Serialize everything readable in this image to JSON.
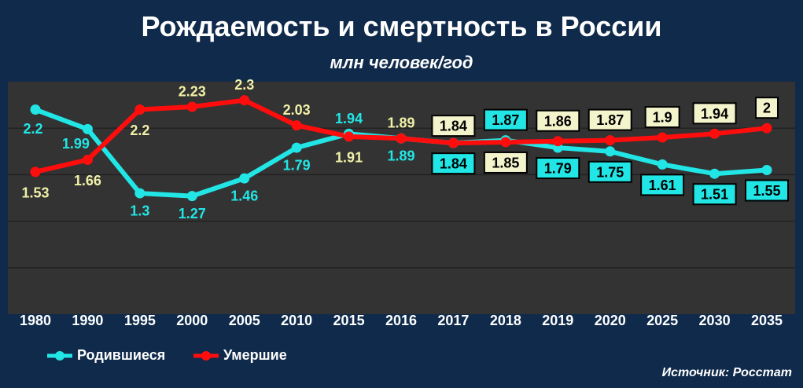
{
  "title": "Рождаемость и смертность в России",
  "subtitle": "млн человек/год",
  "source": "Источник: Росстат",
  "colors": {
    "background": "#0f2a4a",
    "plot_area": "#333333",
    "grid": "#222222",
    "births": "#22e6e6",
    "deaths": "#ff0d0d",
    "births_label": "#22e6e6",
    "deaths_label": "#f0f0a8",
    "label_box": "#f4f4cc"
  },
  "chart_data": {
    "type": "line",
    "categories": [
      "1980",
      "1990",
      "1995",
      "2000",
      "2005",
      "2010",
      "2015",
      "2016",
      "2017",
      "2018",
      "2019",
      "2020",
      "2025",
      "2030",
      "2035"
    ],
    "ylim": [
      0,
      2.5
    ],
    "grid": true,
    "legend_position": "bottom-left",
    "series": [
      {
        "name": "Родившиеся",
        "color": "#22e6e6",
        "values": [
          2.2,
          1.99,
          1.3,
          1.27,
          1.46,
          1.79,
          1.94,
          1.89,
          1.84,
          1.87,
          1.79,
          1.75,
          1.61,
          1.51,
          1.55
        ],
        "labels": [
          "2.2",
          "1.99",
          "1.3",
          "1.27",
          "1.46",
          "1.79",
          "1.94",
          "1.89",
          "1.84",
          "1.87",
          "1.79",
          "1.75",
          "1.61",
          "1.51",
          "1.55"
        ]
      },
      {
        "name": "Умершие",
        "color": "#ff0d0d",
        "values": [
          1.53,
          1.66,
          2.2,
          2.23,
          2.3,
          2.03,
          1.91,
          1.89,
          1.84,
          1.85,
          1.86,
          1.87,
          1.9,
          1.94,
          2.0
        ],
        "labels": [
          "1.53",
          "1.66",
          "2.2",
          "2.23",
          "2.3",
          "2.03",
          "1.91",
          "1.89",
          "1.84",
          "1.85",
          "1.86",
          "1.87",
          "1.9",
          "1.94",
          "2"
        ]
      }
    ]
  }
}
